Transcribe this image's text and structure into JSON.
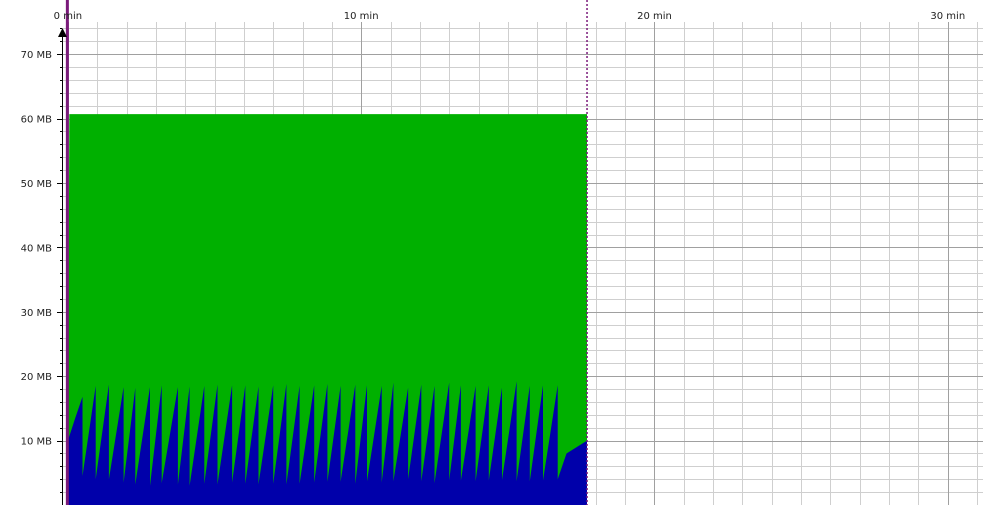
{
  "chart_data": {
    "type": "area",
    "title": "",
    "xlabel": "",
    "ylabel": "",
    "x_unit": "min",
    "y_unit": "MB",
    "xlim": [
      -0.2,
      31.2
    ],
    "ylim": [
      0,
      75
    ],
    "grid": true,
    "x_ticks": [
      {
        "value": 0,
        "label": "0 min"
      },
      {
        "value": 10,
        "label": "10 min"
      },
      {
        "value": 20,
        "label": "20 min"
      },
      {
        "value": 30,
        "label": "30 min"
      }
    ],
    "y_ticks": [
      {
        "value": 10,
        "label": "10 MB"
      },
      {
        "value": 20,
        "label": "20 MB"
      },
      {
        "value": 30,
        "label": "30 MB"
      },
      {
        "value": 40,
        "label": "40 MB"
      },
      {
        "value": 50,
        "label": "50 MB"
      },
      {
        "value": 60,
        "label": "60 MB"
      },
      {
        "value": 70,
        "label": "70 MB"
      }
    ],
    "markers": [
      {
        "x": 0.0,
        "color": "#7a1a7a",
        "style": "solid"
      },
      {
        "x": 17.7,
        "color": "#7a1a7a",
        "style": "dotted"
      }
    ],
    "series": [
      {
        "color": "#00b000",
        "x": [
          0.0,
          0.05,
          17.7,
          17.7
        ],
        "values": [
          0,
          60.7,
          60.7,
          0
        ]
      },
      {
        "color": "#0000aa",
        "x": [
          0.0,
          0.25,
          0.5,
          0.5,
          0.95,
          0.95,
          1.4,
          1.4,
          1.9,
          1.9,
          2.3,
          2.3,
          2.8,
          2.8,
          3.2,
          3.2,
          3.75,
          3.75,
          4.15,
          4.15,
          4.65,
          4.65,
          5.1,
          5.1,
          5.6,
          5.6,
          6.05,
          6.05,
          6.5,
          6.5,
          7.0,
          7.0,
          7.45,
          7.45,
          7.9,
          7.9,
          8.4,
          8.4,
          8.85,
          8.85,
          9.3,
          9.3,
          9.8,
          9.8,
          10.2,
          10.2,
          10.7,
          10.7,
          11.1,
          11.1,
          11.6,
          11.6,
          12.05,
          12.05,
          12.5,
          12.5,
          13.0,
          13.0,
          13.4,
          13.4,
          13.9,
          13.9,
          14.35,
          14.35,
          14.8,
          14.8,
          15.3,
          15.3,
          15.75,
          15.75,
          16.2,
          16.2,
          16.7,
          16.7,
          17.0,
          17.7
        ],
        "values": [
          10.0,
          13.5,
          16.8,
          4.5,
          18.5,
          4.0,
          18.7,
          4.0,
          18.3,
          3.5,
          18.2,
          3.2,
          18.3,
          3.0,
          18.6,
          3.4,
          18.3,
          3.2,
          18.4,
          3.0,
          18.5,
          3.3,
          18.7,
          3.2,
          18.6,
          3.5,
          18.6,
          3.3,
          18.4,
          3.2,
          18.6,
          3.3,
          18.8,
          3.2,
          18.5,
          3.3,
          18.6,
          3.5,
          18.8,
          3.6,
          18.5,
          3.6,
          18.7,
          3.3,
          18.6,
          3.7,
          18.5,
          3.5,
          19.0,
          3.7,
          18.2,
          4.0,
          18.7,
          3.7,
          18.5,
          3.4,
          19.0,
          3.8,
          18.6,
          3.8,
          18.5,
          3.7,
          18.6,
          3.8,
          18.2,
          3.9,
          19.2,
          3.7,
          18.5,
          3.7,
          18.6,
          3.8,
          18.6,
          4.0,
          8.0,
          10.0
        ]
      }
    ]
  }
}
